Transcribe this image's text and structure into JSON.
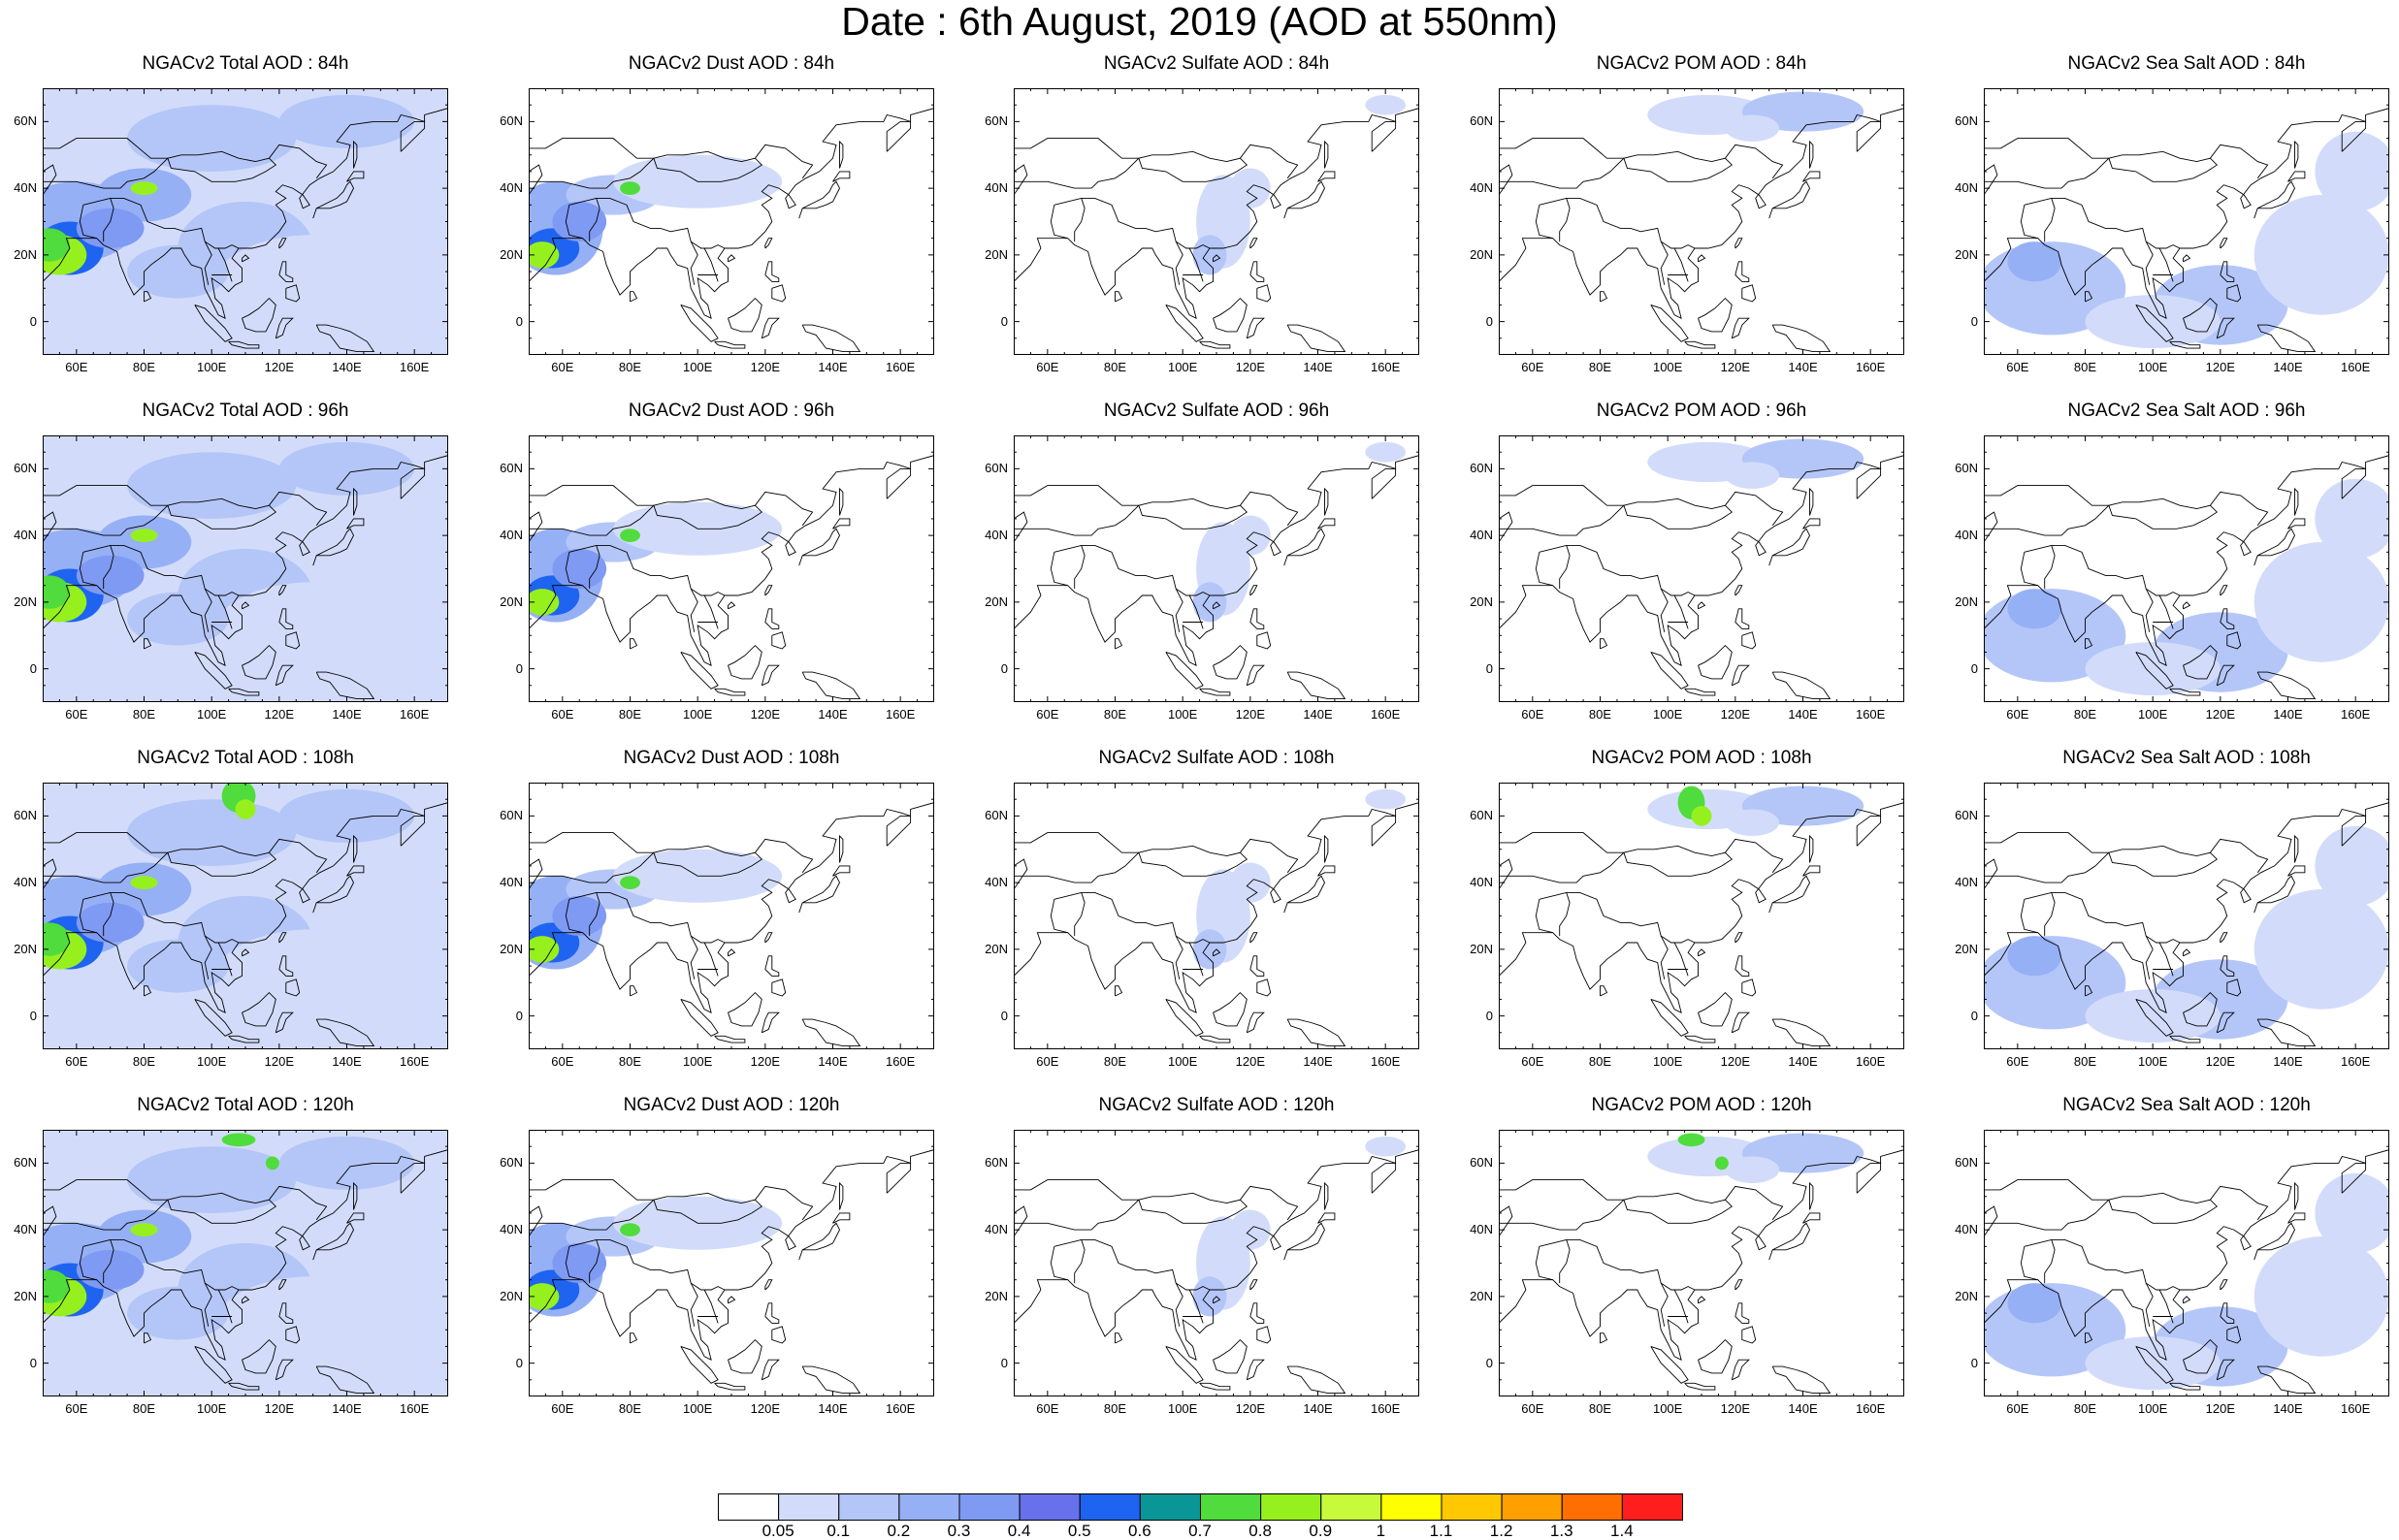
{
  "title": "Date : 6th August, 2019 (AOD at 550nm)",
  "map_axes": {
    "lon_ticks": [
      "60E",
      "80E",
      "100E",
      "120E",
      "140E",
      "160E"
    ],
    "lat_ticks": [
      "60N",
      "40N",
      "20N",
      "0"
    ],
    "lon_range": [
      50,
      170
    ],
    "lat_range": [
      -10,
      70
    ]
  },
  "species": [
    "total",
    "dust",
    "sulfate",
    "pom",
    "seasalt"
  ],
  "lead_hours": [
    "84h",
    "96h",
    "108h",
    "120h"
  ],
  "panels": [
    [
      {
        "title": "NGACv2 Total AOD : 84h",
        "species": "total"
      },
      {
        "title": "NGACv2 Dust AOD : 84h",
        "species": "dust"
      },
      {
        "title": "NGACv2 Sulfate AOD : 84h",
        "species": "sulfate"
      },
      {
        "title": "NGACv2 POM AOD : 84h",
        "species": "pom"
      },
      {
        "title": "NGACv2 Sea Salt AOD : 84h",
        "species": "seasalt"
      }
    ],
    [
      {
        "title": "NGACv2 Total AOD : 96h",
        "species": "total"
      },
      {
        "title": "NGACv2 Dust AOD : 96h",
        "species": "dust"
      },
      {
        "title": "NGACv2 Sulfate AOD : 96h",
        "species": "sulfate"
      },
      {
        "title": "NGACv2 POM AOD : 96h",
        "species": "pom"
      },
      {
        "title": "NGACv2 Sea Salt AOD : 96h",
        "species": "seasalt"
      }
    ],
    [
      {
        "title": "NGACv2 Total AOD : 108h",
        "species": "total"
      },
      {
        "title": "NGACv2 Dust AOD : 108h",
        "species": "dust"
      },
      {
        "title": "NGACv2 Sulfate AOD : 108h",
        "species": "sulfate"
      },
      {
        "title": "NGACv2 POM AOD : 108h",
        "species": "pom"
      },
      {
        "title": "NGACv2 Sea Salt AOD : 108h",
        "species": "seasalt"
      }
    ],
    [
      {
        "title": "NGACv2 Total AOD : 120h",
        "species": "total"
      },
      {
        "title": "NGACv2 Dust AOD : 120h",
        "species": "dust"
      },
      {
        "title": "NGACv2 Sulfate AOD : 120h",
        "species": "sulfate"
      },
      {
        "title": "NGACv2 POM AOD : 120h",
        "species": "pom"
      },
      {
        "title": "NGACv2 Sea Salt  AOD : 120h",
        "species": "seasalt"
      }
    ]
  ],
  "colorbar": {
    "labels": [
      "0.05",
      "0.1",
      "0.2",
      "0.3",
      "0.4",
      "0.5",
      "0.6",
      "0.7",
      "0.8",
      "0.9",
      "1",
      "1.1",
      "1.2",
      "1.3",
      "1.4"
    ],
    "colors": [
      "#ffffff",
      "#d2dcfa",
      "#b4c6f8",
      "#96b0f6",
      "#7f9af2",
      "#6870ec",
      "#1e64f0",
      "#0a9696",
      "#50dc3c",
      "#96f01e",
      "#c8fa3c",
      "#ffff00",
      "#ffc800",
      "#ffa000",
      "#ff6e00",
      "#ff1e1e"
    ]
  }
}
